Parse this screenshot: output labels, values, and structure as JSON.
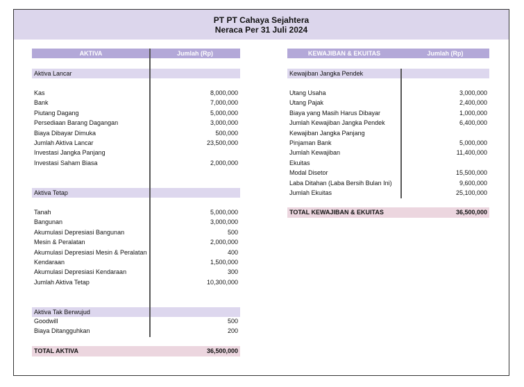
{
  "header": {
    "company": "PT PT Cahaya Sejahtera",
    "subtitle": "Neraca Per 31 Juli 2024"
  },
  "aktiva": {
    "col1": "AKTIVA",
    "col2": "Jumlah (Rp)",
    "lancar": {
      "title": "Aktiva Lancar",
      "items": [
        {
          "label": "Kas",
          "value": "8,000,000"
        },
        {
          "label": "Bank",
          "value": "7,000,000"
        },
        {
          "label": "Piutang Dagang",
          "value": "5,000,000"
        },
        {
          "label": "Persediaan Barang Dagangan",
          "value": "3,000,000"
        },
        {
          "label": "Biaya Dibayar Dimuka",
          "value": "500,000"
        },
        {
          "label": "Jumlah Aktiva Lancar",
          "value": "23,500,000"
        },
        {
          "label": "Investasi Jangka Panjang",
          "value": ""
        },
        {
          "label": "Investasi Saham Biasa",
          "value": "2,000,000"
        }
      ]
    },
    "tetap": {
      "title": "Aktiva Tetap",
      "items": [
        {
          "label": "Tanah",
          "value": "5,000,000"
        },
        {
          "label": "Bangunan",
          "value": "3,000,000"
        },
        {
          "label": "Akumulasi Depresiasi Bangunan",
          "value": "500"
        },
        {
          "label": "Mesin & Peralatan",
          "value": "2,000,000"
        },
        {
          "label": "Akumulasi Depresiasi Mesin & Peralatan",
          "value": "400"
        },
        {
          "label": "Kendaraan",
          "value": "1,500,000"
        },
        {
          "label": "Akumulasi Depresiasi Kendaraan",
          "value": "300"
        },
        {
          "label": "Jumlah Aktiva Tetap",
          "value": "10,300,000"
        }
      ]
    },
    "takberwujud": {
      "title": "Aktiva Tak Berwujud",
      "items": [
        {
          "label": "Goodwill",
          "value": "500"
        },
        {
          "label": "Biaya Ditangguhkan",
          "value": "200"
        }
      ]
    },
    "total": {
      "label": "TOTAL AKTIVA",
      "value": "36,500,000"
    }
  },
  "kewajiban": {
    "col1": "KEWAJIBAN & EKUITAS",
    "col2": "Jumlah (Rp)",
    "section": "Kewajiban Jangka Pendek",
    "items": [
      {
        "label": "Utang Usaha",
        "value": "3,000,000"
      },
      {
        "label": "Utang Pajak",
        "value": "2,400,000"
      },
      {
        "label": "Biaya yang Masih Harus Dibayar",
        "value": "1,000,000"
      },
      {
        "label": "Jumlah Kewajiban Jangka Pendek",
        "value": "6,400,000"
      },
      {
        "label": "Kewajiban Jangka Panjang",
        "value": ""
      },
      {
        "label": "Pinjaman Bank",
        "value": "5,000,000"
      },
      {
        "label": "Jumlah Kewajiban",
        "value": "11,400,000"
      },
      {
        "label": "Ekuitas",
        "value": ""
      },
      {
        "label": "Modal Disetor",
        "value": "15,500,000"
      },
      {
        "label": "Laba Ditahan (Laba Bersih Bulan Ini)",
        "value": "9,600,000"
      },
      {
        "label": "Jumlah Ekuitas",
        "value": "25,100,000"
      }
    ],
    "total": {
      "label": "TOTAL KEWAJIBAN & EKUITAS",
      "value": "36,500,000"
    }
  },
  "colors": {
    "header_band": "#dcd6ec",
    "column_header": "#b3a8d8",
    "section": "#ddd7ee",
    "total": "#ecd6df"
  }
}
